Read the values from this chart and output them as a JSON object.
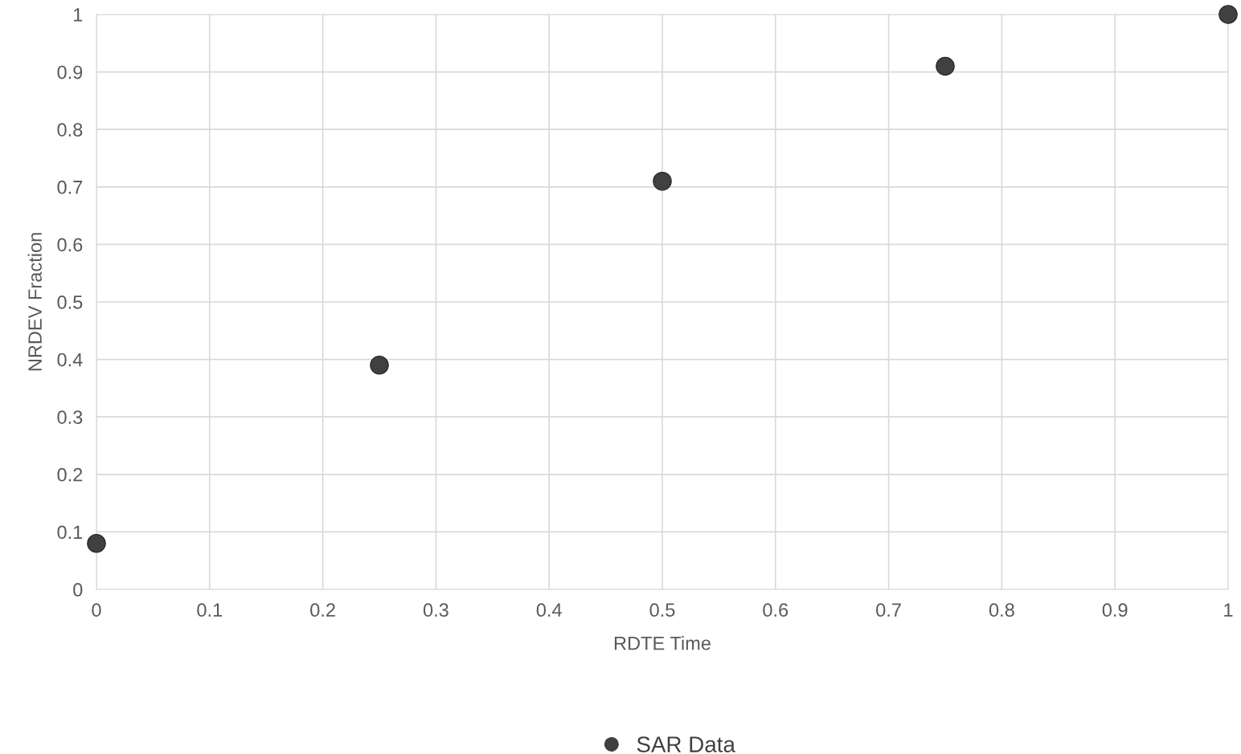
{
  "chart_data": {
    "type": "scatter",
    "xlabel": "RDTE Time",
    "ylabel": "NRDEV Fraction",
    "x": [
      0,
      0.25,
      0.5,
      0.75,
      1
    ],
    "series": [
      {
        "name": "SAR Data",
        "color": "#404040",
        "values": [
          0.08,
          0.39,
          0.71,
          0.91,
          1.0
        ]
      }
    ],
    "xlim": [
      0,
      1
    ],
    "xticks": [
      0,
      0.1,
      0.2,
      0.3,
      0.4,
      0.5,
      0.6,
      0.7,
      0.8,
      0.9,
      1
    ],
    "ylim": [
      0,
      1
    ],
    "yticks": [
      0,
      0.1,
      0.2,
      0.3,
      0.4,
      0.5,
      0.6,
      0.7,
      0.8,
      0.9,
      1
    ],
    "grid": true,
    "legend": "bottom",
    "marker": "circle"
  }
}
